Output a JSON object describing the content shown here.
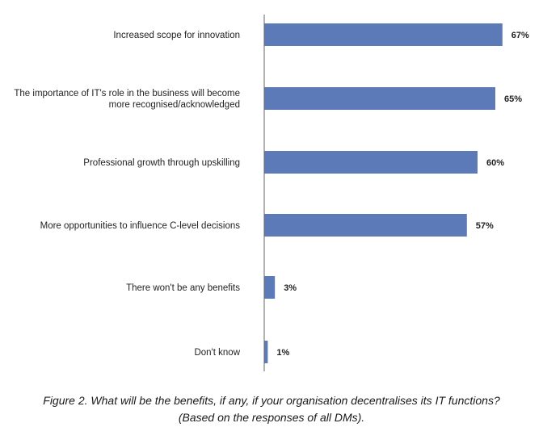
{
  "chart_data": {
    "type": "bar",
    "orientation": "horizontal",
    "categories": [
      [
        "Increased scope for innovation"
      ],
      [
        "The importance of IT's role in the business will become",
        "more recognised/acknowledged"
      ],
      [
        "Professional growth through upskilling"
      ],
      [
        "More opportunities to influence C-level decisions"
      ],
      [
        "There won't be any benefits"
      ],
      [
        "Don't know"
      ]
    ],
    "values": [
      67,
      65,
      60,
      57,
      3,
      1
    ],
    "value_labels": [
      "67%",
      "65%",
      "60%",
      "57%",
      "3%",
      "1%"
    ],
    "xlim": [
      0,
      70
    ],
    "grid": false,
    "bar_color": "#5b7ab7",
    "axis_color": "#666666"
  },
  "caption": {
    "line1": "Figure 2. What will be the benefits, if any, if your organisation decentralises its IT functions?",
    "line2": "(Based on the responses of all DMs)."
  }
}
